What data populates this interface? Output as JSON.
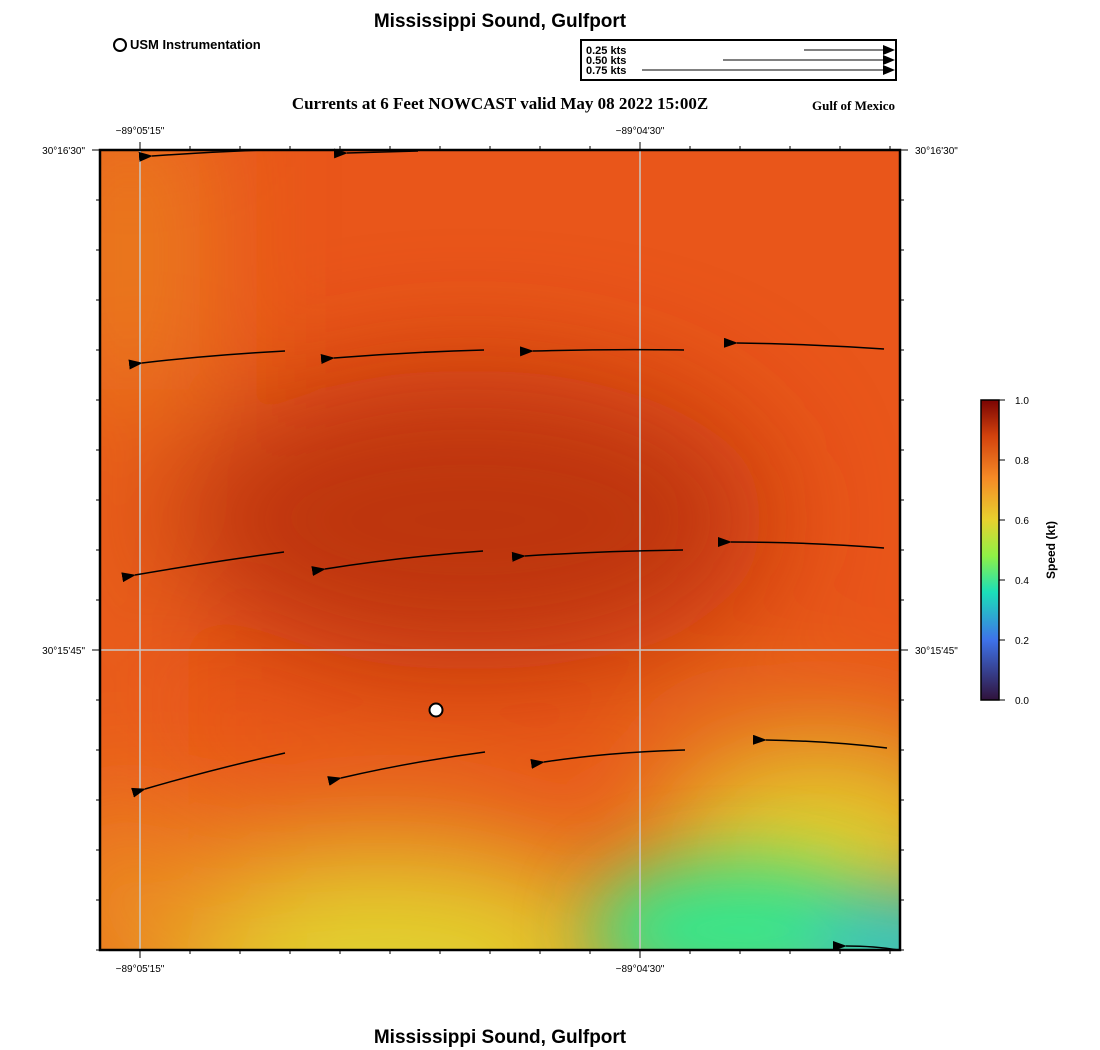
{
  "header": {
    "title": "Mississippi Sound, Gulfport",
    "subtitle": "Currents at 6 Feet NOWCAST valid May 08 2022 15:00Z",
    "region": "Gulf of Mexico",
    "footer_title": "Mississippi Sound, Gulfport"
  },
  "legend": {
    "station_label": "USM Instrumentation",
    "vector_scale": [
      "0.25 kts",
      "0.50 kts",
      "0.75 kts"
    ]
  },
  "map": {
    "x_ticks": [
      "−89°05'15\"",
      "−89°04'30\""
    ],
    "y_ticks": [
      "30°16'30\"",
      "30°15'45\""
    ],
    "field_colors": {
      "dark_core": "#bd360d",
      "orange": "#e9561a",
      "light_orange": "#eb8a22",
      "yellow": "#e2d12e",
      "green": "#38e58b",
      "cyan": "#34c7be"
    }
  },
  "colorbar": {
    "label": "Speed (kt)",
    "ticks": [
      "1.0",
      "0.8",
      "0.6",
      "0.4",
      "0.2",
      "0.0"
    ],
    "range": [
      0.0,
      1.0
    ],
    "stops": [
      "#30123b",
      "#3e72e9",
      "#1be0b8",
      "#8ff146",
      "#e8d12e",
      "#f58a26",
      "#d2420d",
      "#7a0403"
    ]
  }
}
